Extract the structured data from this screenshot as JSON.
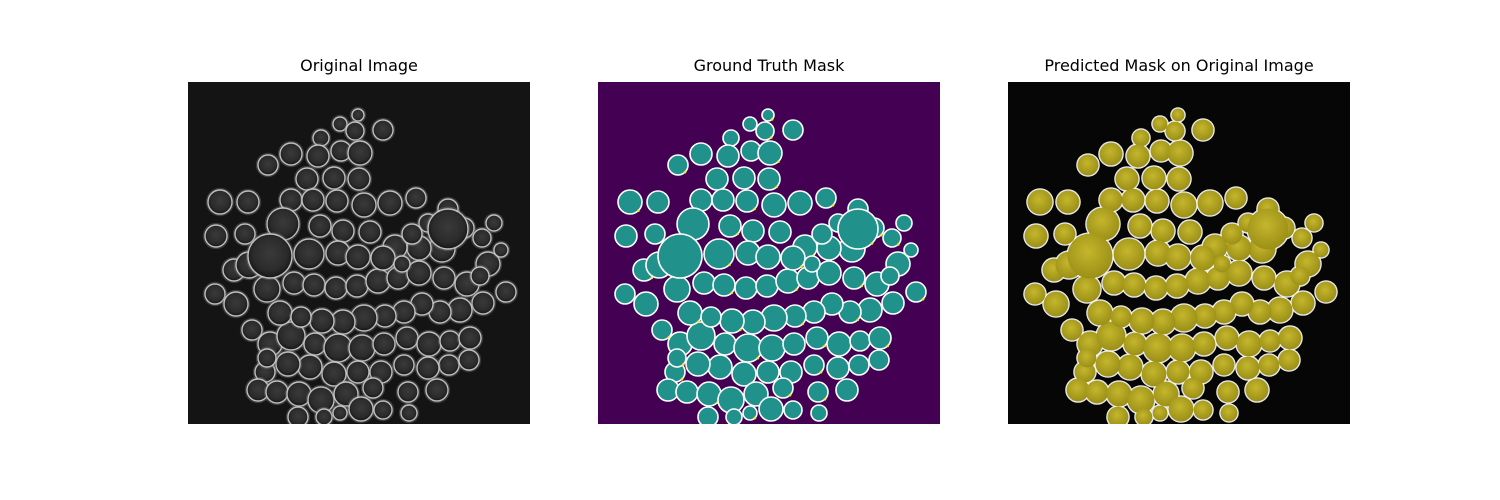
{
  "figure": {
    "panels": [
      {
        "title": "Original Image",
        "kind": "original"
      },
      {
        "title": "Ground Truth Mask",
        "kind": "ground_truth"
      },
      {
        "title": "Predicted Mask on Original Image",
        "kind": "predicted"
      }
    ]
  },
  "colors": {
    "page_background": "#ffffff",
    "original_background": "#141414",
    "original_cell_fill": "#2b2b2b",
    "original_cell_rim": "#d8d8d8",
    "gt_background": "#440154",
    "gt_cell_fill": "#21918c",
    "gt_cell_outline": "#ffffff",
    "gt_boundary_accent": "#fde725",
    "pred_background": "#060606",
    "pred_cell_fill": "#b3a51f",
    "pred_cell_outline": "#ffffff"
  }
}
